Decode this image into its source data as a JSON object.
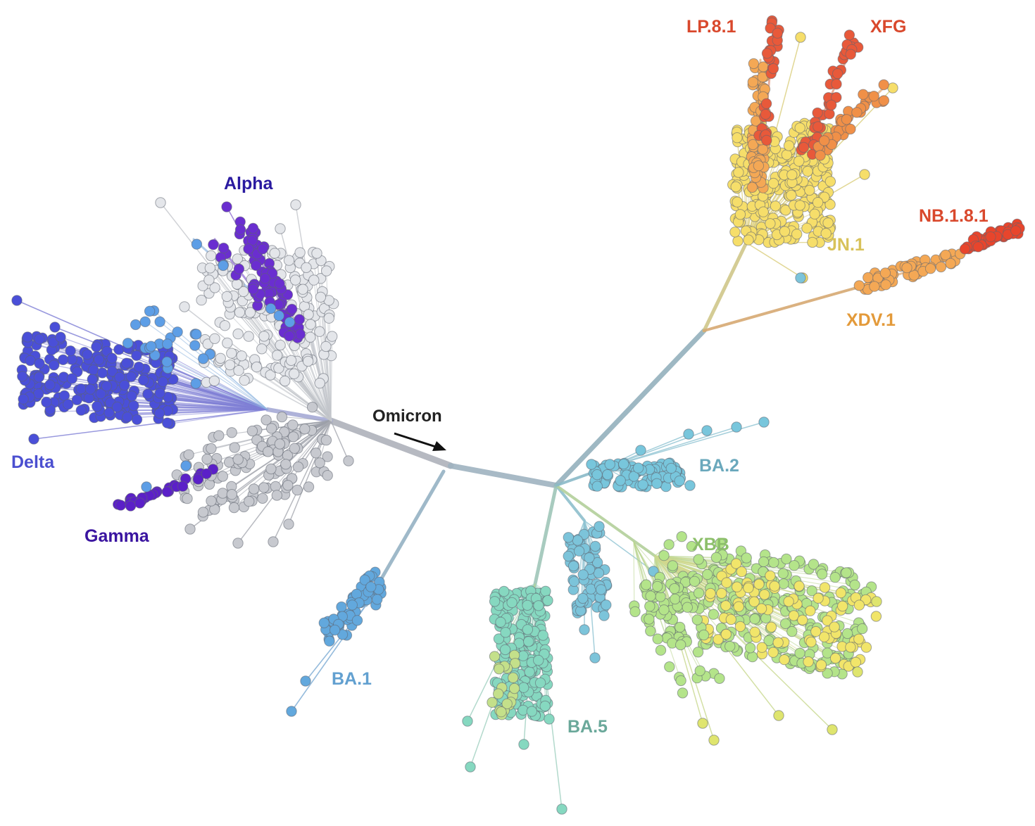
{
  "annotation": {
    "text": "Omicron",
    "color": "#222222"
  },
  "clades": [
    {
      "key": "delta",
      "label": "Delta",
      "color": "#4a4fd8",
      "label_color": "#4b4fd0",
      "icon": "tip-circle"
    },
    {
      "key": "gamma",
      "label": "Gamma",
      "color": "#5b20c8",
      "label_color": "#3a14a0",
      "icon": "tip-circle"
    },
    {
      "key": "alpha",
      "label": "Alpha",
      "color": "#6a2ed0",
      "label_color": "#2a1aa0",
      "icon": "tip-circle"
    },
    {
      "key": "ba1",
      "label": "BA.1",
      "color": "#62a8dd",
      "label_color": "#62a0d0",
      "icon": "tip-circle"
    },
    {
      "key": "ba2",
      "label": "BA.2",
      "color": "#78c6dc",
      "label_color": "#6aa8bc",
      "icon": "tip-circle"
    },
    {
      "key": "ba5",
      "label": "BA.5",
      "color": "#86d8c0",
      "label_color": "#6aa89a",
      "icon": "tip-circle"
    },
    {
      "key": "xbb",
      "label": "XBB",
      "color": "#b4e48a",
      "label_color": "#8cbf6a",
      "icon": "tip-circle"
    },
    {
      "key": "jn1",
      "label": "JN.1",
      "color": "#f6de6a",
      "label_color": "#d8c25a",
      "icon": "tip-circle"
    },
    {
      "key": "xdv1",
      "label": "XDV.1",
      "color": "#f4a855",
      "label_color": "#e39a3a",
      "icon": "tip-circle"
    },
    {
      "key": "nb181",
      "label": "NB.1.8.1",
      "color": "#e8452c",
      "label_color": "#d9482c",
      "icon": "tip-circle"
    },
    {
      "key": "lp81",
      "label": "LP.8.1",
      "color": "#e8593a",
      "label_color": "#d9482c",
      "icon": "tip-circle"
    },
    {
      "key": "xfg",
      "label": "XFG",
      "color": "#e8452c",
      "label_color": "#d9482c",
      "icon": "tip-circle"
    }
  ],
  "colors": {
    "background": "#ffffff",
    "trunk": "#a9adb6",
    "ancestral_tips": "#c7c9cf",
    "ancestral_tips_light": "#e4e6ea",
    "stroke_dark": "#5f6570"
  }
}
